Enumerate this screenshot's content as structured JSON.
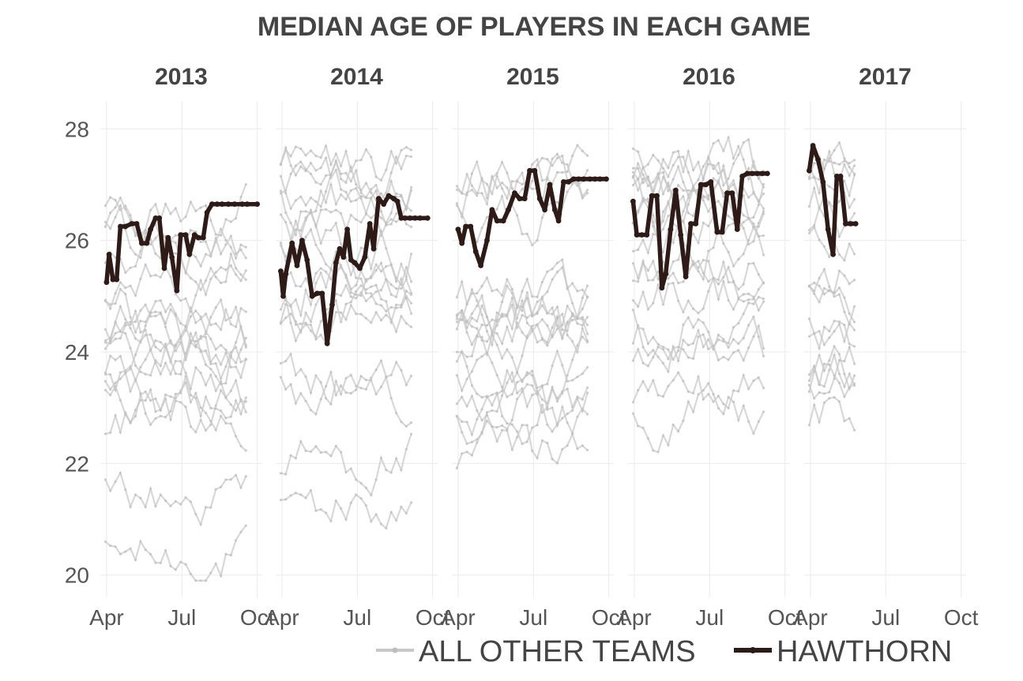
{
  "chart_data": {
    "type": "line",
    "title": "MEDIAN AGE OF PLAYERS IN EACH GAME",
    "xlabel": "",
    "ylabel": "",
    "ylim": [
      19.6,
      28.5
    ],
    "yticks": [
      20,
      22,
      24,
      26,
      28
    ],
    "x_ticks": [
      "Apr",
      "Jul",
      "Oct"
    ],
    "x_tick_months": [
      4,
      7,
      10
    ],
    "x_range_months": [
      3.75,
      10.2
    ],
    "facets": [
      "2013",
      "2014",
      "2015",
      "2016",
      "2017"
    ],
    "grid": true,
    "legend": {
      "placement": "bottom",
      "entries": [
        {
          "label": "ALL OTHER TEAMS",
          "color": "#c8c8c8"
        },
        {
          "label": "HAWTHORN",
          "color": "#2e1a16"
        }
      ]
    },
    "highlight_color": "#2e1a16",
    "other_color": "#c8c8c8",
    "series": [
      {
        "name": "HAWTHORN",
        "year": "2013",
        "x": [
          4.0,
          4.1,
          4.25,
          4.4,
          4.55,
          4.75,
          5.0,
          5.2,
          5.4,
          5.6,
          5.75,
          5.95,
          6.1,
          6.3,
          6.45,
          6.6,
          6.8,
          6.95,
          7.15,
          7.3,
          7.5,
          7.65,
          7.85,
          8.0,
          8.2,
          8.4,
          8.6,
          8.85,
          9.1,
          9.4,
          9.6,
          10.0
        ],
        "y": [
          25.25,
          25.75,
          25.3,
          25.3,
          26.25,
          26.25,
          26.3,
          26.3,
          25.95,
          25.95,
          26.2,
          26.4,
          26.4,
          25.5,
          26.05,
          25.7,
          25.1,
          26.1,
          26.1,
          25.75,
          26.1,
          26.05,
          26.05,
          26.5,
          26.65,
          26.65,
          26.65,
          26.65,
          26.65,
          26.65,
          26.65,
          26.65
        ]
      },
      {
        "name": "HAWTHORN",
        "year": "2014",
        "x": [
          3.95,
          4.05,
          4.15,
          4.4,
          4.6,
          4.8,
          5.0,
          5.2,
          5.4,
          5.6,
          5.8,
          6.0,
          6.15,
          6.3,
          6.45,
          6.6,
          6.75,
          6.9,
          7.1,
          7.3,
          7.5,
          7.65,
          7.85,
          8.05,
          8.25,
          8.45,
          8.6,
          8.75,
          8.9,
          9.1,
          9.3,
          9.5,
          9.8
        ],
        "y": [
          25.45,
          25.0,
          25.4,
          25.95,
          25.55,
          26.0,
          25.65,
          25.0,
          25.05,
          25.05,
          24.15,
          24.85,
          25.6,
          25.85,
          25.7,
          26.2,
          25.65,
          25.6,
          25.5,
          25.7,
          26.3,
          25.85,
          26.75,
          26.65,
          26.8,
          26.75,
          26.7,
          26.4,
          26.4,
          26.4,
          26.4,
          26.4,
          26.4
        ]
      },
      {
        "name": "HAWTHORN",
        "year": "2015",
        "x": [
          4.0,
          4.15,
          4.3,
          4.5,
          4.7,
          4.9,
          5.15,
          5.35,
          5.55,
          5.8,
          6.0,
          6.25,
          6.45,
          6.65,
          6.85,
          7.05,
          7.25,
          7.45,
          7.65,
          7.85,
          8.0,
          8.2,
          8.4,
          8.6,
          8.8,
          9.0,
          9.25,
          9.45,
          9.65,
          9.9
        ],
        "y": [
          26.2,
          25.95,
          26.25,
          26.25,
          25.8,
          25.55,
          26.0,
          26.55,
          26.35,
          26.35,
          26.55,
          26.85,
          26.75,
          26.75,
          27.25,
          27.25,
          26.75,
          26.55,
          27.0,
          26.55,
          26.35,
          27.05,
          27.05,
          27.1,
          27.1,
          27.1,
          27.1,
          27.1,
          27.1,
          27.1
        ]
      },
      {
        "name": "HAWTHORN",
        "year": "2016",
        "x": [
          3.95,
          4.1,
          4.3,
          4.5,
          4.7,
          4.9,
          5.1,
          5.25,
          5.45,
          5.65,
          5.85,
          6.05,
          6.25,
          6.45,
          6.65,
          6.85,
          7.05,
          7.3,
          7.5,
          7.7,
          7.9,
          8.1,
          8.3,
          8.5,
          8.7,
          8.9,
          9.1,
          9.3
        ],
        "y": [
          26.7,
          26.1,
          26.1,
          26.1,
          26.8,
          26.8,
          25.15,
          25.4,
          26.2,
          26.9,
          26.1,
          25.35,
          26.3,
          26.3,
          27.0,
          27.0,
          27.05,
          26.15,
          26.15,
          26.85,
          26.85,
          26.2,
          27.15,
          27.2,
          27.2,
          27.2,
          27.2,
          27.2
        ]
      },
      {
        "name": "HAWTHORN",
        "year": "2017",
        "x": [
          3.95,
          4.1,
          4.3,
          4.5,
          4.7,
          4.9,
          5.05,
          5.2,
          5.4,
          5.6,
          5.8
        ],
        "y": [
          27.25,
          27.7,
          27.45,
          27.05,
          26.2,
          25.75,
          27.15,
          27.15,
          26.3,
          26.3,
          26.3
        ]
      }
    ]
  }
}
